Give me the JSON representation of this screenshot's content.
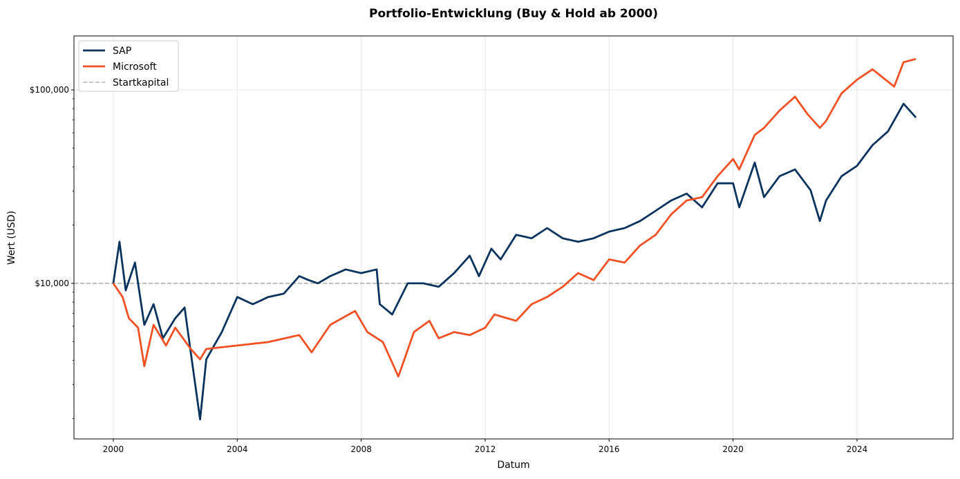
{
  "chart_data": {
    "type": "line",
    "title": "Portfolio-Entwicklung (Buy & Hold ab 2000)",
    "xlabel": "Datum",
    "ylabel": "Wert (USD)",
    "yscale": "log",
    "xlim": [
      1998.73,
      2027.1
    ],
    "ylim": [
      1570,
      190000
    ],
    "x_ticks": [
      2000,
      2004,
      2008,
      2012,
      2016,
      2020,
      2024
    ],
    "x_tick_labels": [
      "2000",
      "2004",
      "2008",
      "2012",
      "2016",
      "2020",
      "2024"
    ],
    "y_ticks": [
      10000,
      100000
    ],
    "y_tick_labels": [
      "$10,000",
      "$100,000"
    ],
    "grid": true,
    "legend_position": "top-left",
    "series": [
      {
        "name": "SAP",
        "color": "#08335e",
        "x": [
          2000.0,
          2000.2,
          2000.4,
          2000.7,
          2001.0,
          2001.3,
          2001.6,
          2002.0,
          2002.3,
          2002.5,
          2002.8,
          2003.0,
          2003.5,
          2004.0,
          2004.5,
          2005.0,
          2005.5,
          2006.0,
          2006.3,
          2006.6,
          2007.0,
          2007.5,
          2008.0,
          2008.5,
          2008.6,
          2009.0,
          2009.5,
          2010.0,
          2010.5,
          2011.0,
          2011.5,
          2011.8,
          2012.2,
          2012.5,
          2013.0,
          2013.5,
          2014.0,
          2014.5,
          2015.0,
          2015.5,
          2016.0,
          2016.5,
          2017.0,
          2017.5,
          2018.0,
          2018.5,
          2019.0,
          2019.5,
          2020.0,
          2020.2,
          2020.7,
          2021.0,
          2021.5,
          2022.0,
          2022.5,
          2022.8,
          2023.0,
          2023.5,
          2024.0,
          2024.5,
          2025.0,
          2025.5,
          2025.9
        ],
        "y": [
          10000,
          16400,
          9200,
          12800,
          6100,
          7800,
          5200,
          6600,
          7500,
          4400,
          1980,
          4050,
          5600,
          8500,
          7800,
          8500,
          8840,
          10900,
          10400,
          10000,
          10900,
          11800,
          11300,
          11800,
          7800,
          6900,
          10000,
          10000,
          9600,
          11300,
          13900,
          10900,
          15100,
          13300,
          17800,
          17100,
          19300,
          17100,
          16400,
          17100,
          18500,
          19300,
          21000,
          23700,
          26800,
          29100,
          24700,
          32900,
          32900,
          24700,
          42100,
          27900,
          35800,
          38800,
          30300,
          21000,
          26800,
          35800,
          40500,
          51800,
          61000,
          84800,
          72000
        ]
      },
      {
        "name": "Microsoft",
        "color": "#f25022",
        "x": [
          2000.0,
          2000.3,
          2000.5,
          2000.8,
          2001.0,
          2001.3,
          2001.7,
          2002.0,
          2002.5,
          2002.8,
          2003.0,
          2004.0,
          2005.0,
          2006.0,
          2006.4,
          2007.0,
          2007.8,
          2008.2,
          2008.7,
          2009.2,
          2009.7,
          2010.2,
          2010.5,
          2011.0,
          2011.5,
          2012.0,
          2012.3,
          2013.0,
          2013.5,
          2014.0,
          2014.5,
          2015.0,
          2015.5,
          2016.0,
          2016.5,
          2017.0,
          2017.5,
          2018.0,
          2018.5,
          2019.0,
          2019.5,
          2020.0,
          2020.2,
          2020.7,
          2021.0,
          2021.5,
          2022.0,
          2022.4,
          2022.8,
          2023.0,
          2023.5,
          2024.0,
          2024.5,
          2025.2,
          2025.5,
          2025.9
        ],
        "y": [
          10000,
          8500,
          6600,
          5900,
          3730,
          6100,
          4770,
          5900,
          4580,
          4050,
          4580,
          4770,
          4970,
          5400,
          4400,
          6100,
          7200,
          5600,
          4970,
          3300,
          5600,
          6400,
          5200,
          5600,
          5400,
          5900,
          6900,
          6400,
          7800,
          8500,
          9600,
          11300,
          10400,
          13300,
          12800,
          15700,
          17800,
          22700,
          26800,
          27900,
          35800,
          43900,
          38800,
          58500,
          63600,
          78200,
          92200,
          75000,
          63600,
          69100,
          95900,
          112900,
          127700,
          104000,
          139000,
          144500
        ]
      },
      {
        "name": "Startkapital",
        "color": "#b0b0b0",
        "style": "dashed",
        "y_constant": 10000
      }
    ]
  }
}
